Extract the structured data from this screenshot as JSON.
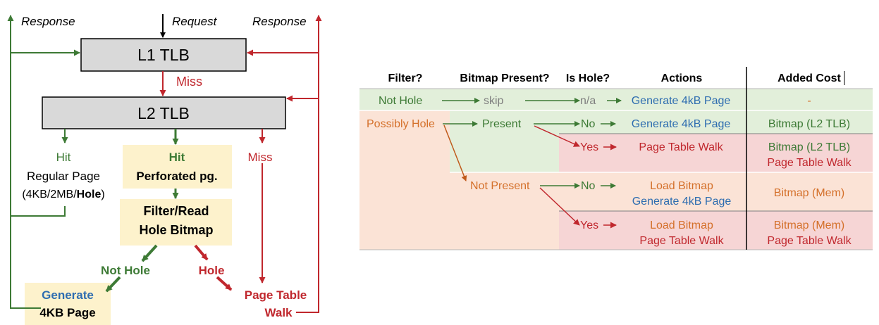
{
  "colors": {
    "green": "#3d7a35",
    "red": "#c0272d",
    "blue": "#2e6db0",
    "orange": "#d4702a",
    "gray": "#7f7f7f",
    "yellow_fill": "#fdf2cc",
    "box_gray": "#d9d9d9",
    "green_fill": "#e2efda",
    "red_fill": "#f6d5d5",
    "orange_fill": "#fbe3d6"
  },
  "flow": {
    "response_left": "Response",
    "request": "Request",
    "response_right": "Response",
    "l1": "L1 TLB",
    "miss1": "Miss",
    "l2": "L2 TLB",
    "hit_left": "Hit",
    "regular_page": "Regular Page",
    "sizes_a": "(4KB/2MB/",
    "sizes_hole": "Hole",
    "sizes_b": ")",
    "hit_mid": "Hit",
    "perforated": "Perforated pg.",
    "miss2": "Miss",
    "filter_line1": "Filter/Read",
    "filter_line2": "Hole Bitmap",
    "not_hole": "Not Hole",
    "hole": "Hole",
    "generate_line1": "Generate",
    "generate_line2": "4KB Page",
    "ptw_line1": "Page Table",
    "ptw_line2": "Walk"
  },
  "table": {
    "headers": [
      "Filter?",
      "Bitmap Present?",
      "Is Hole?",
      "Actions",
      "Added Cost"
    ],
    "filter_not_hole": "Not Hole",
    "skip": "skip",
    "na": "n/a",
    "gen1": "Generate 4kB Page",
    "cost1": "-",
    "filter_possibly_hole": "Possibly Hole",
    "present": "Present",
    "no1": "No",
    "gen2": "Generate 4kB Page",
    "cost2": "Bitmap (L2 TLB)",
    "yes1": "Yes",
    "ptw1": "Page Table Walk",
    "cost3a": "Bitmap (L2 TLB)",
    "cost3b": "Page Table Walk",
    "not_present": "Not Present",
    "no2": "No",
    "load1": "Load Bitmap",
    "gen3": "Generate 4kB Page",
    "cost4": "Bitmap (Mem)",
    "yes2": "Yes",
    "load2": "Load Bitmap",
    "ptw2": "Page Table Walk",
    "cost5a": "Bitmap (Mem)",
    "cost5b": "Page Table Walk"
  }
}
